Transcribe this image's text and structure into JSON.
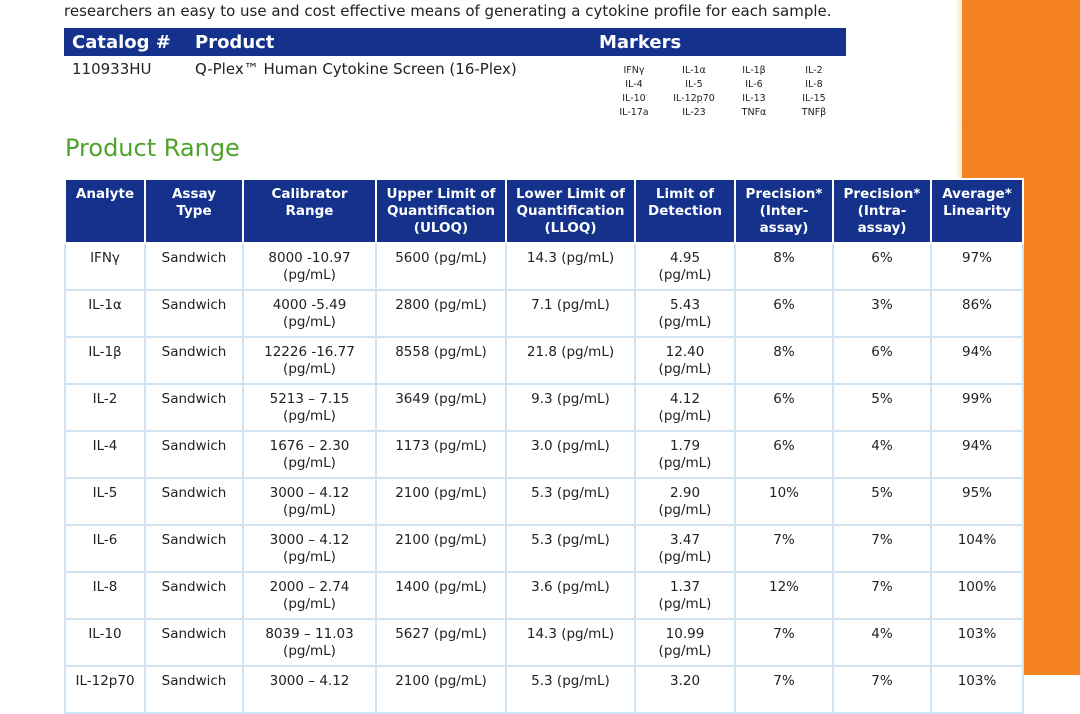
{
  "intro": "researchers an easy to use and cost effective means of generating a cytokine profile for each sample.",
  "catalog": {
    "headers": {
      "catalog": "Catalog #",
      "product": "Product",
      "markers": "Markers"
    },
    "number": "110933HU",
    "product": "Q-Plex™ Human Cytokine Screen (16-Plex)",
    "markers": [
      "IFNγ",
      "IL-1α",
      "IL-1β",
      "IL-2",
      "IL-4",
      "IL-5",
      "IL-6",
      "IL-8",
      "IL-10",
      "IL-12p70",
      "IL-13",
      "IL-15",
      "IL-17a",
      "IL-23",
      "TNFα",
      "TNFβ"
    ]
  },
  "section_title": "Product Range",
  "range_table": {
    "headers": [
      [
        "Analyte"
      ],
      [
        "Assay",
        "Type"
      ],
      [
        "Calibrator",
        "Range"
      ],
      [
        "Upper Limit of",
        "Quantification",
        "(ULOQ)"
      ],
      [
        "Lower Limit of",
        "Quantification",
        "(LLOQ)"
      ],
      [
        "Limit of",
        "Detection"
      ],
      [
        "Precision*",
        "(Inter-",
        "assay)"
      ],
      [
        "Precision*",
        "(Intra-",
        "assay)"
      ],
      [
        "Average*",
        "Linearity"
      ]
    ],
    "rows": [
      [
        [
          "IFNγ"
        ],
        [
          "Sandwich"
        ],
        [
          "8000 -10.97",
          "(pg/mL)"
        ],
        [
          "5600 (pg/mL)"
        ],
        [
          "14.3 (pg/mL)"
        ],
        [
          "4.95",
          "(pg/mL)"
        ],
        [
          "8%"
        ],
        [
          "6%"
        ],
        [
          "97%"
        ]
      ],
      [
        [
          "IL-1α"
        ],
        [
          "Sandwich"
        ],
        [
          "4000 -5.49",
          "(pg/mL)"
        ],
        [
          "2800 (pg/mL)"
        ],
        [
          "7.1 (pg/mL)"
        ],
        [
          "5.43",
          "(pg/mL)"
        ],
        [
          "6%"
        ],
        [
          "3%"
        ],
        [
          "86%"
        ]
      ],
      [
        [
          "IL-1β"
        ],
        [
          "Sandwich"
        ],
        [
          "12226 -16.77",
          "(pg/mL)"
        ],
        [
          "8558 (pg/mL)"
        ],
        [
          "21.8 (pg/mL)"
        ],
        [
          "12.40",
          "(pg/mL)"
        ],
        [
          "8%"
        ],
        [
          "6%"
        ],
        [
          "94%"
        ]
      ],
      [
        [
          "IL-2"
        ],
        [
          "Sandwich"
        ],
        [
          "5213 – 7.15",
          "(pg/mL)"
        ],
        [
          "3649 (pg/mL)"
        ],
        [
          "9.3 (pg/mL)"
        ],
        [
          "4.12",
          "(pg/mL)"
        ],
        [
          "6%"
        ],
        [
          "5%"
        ],
        [
          "99%"
        ]
      ],
      [
        [
          "IL-4"
        ],
        [
          "Sandwich"
        ],
        [
          "1676 – 2.30",
          "(pg/mL)"
        ],
        [
          "1173 (pg/mL)"
        ],
        [
          "3.0 (pg/mL)"
        ],
        [
          "1.79",
          "(pg/mL)"
        ],
        [
          "6%"
        ],
        [
          "4%"
        ],
        [
          "94%"
        ]
      ],
      [
        [
          "IL-5"
        ],
        [
          "Sandwich"
        ],
        [
          "3000 – 4.12",
          "(pg/mL)"
        ],
        [
          "2100 (pg/mL)"
        ],
        [
          "5.3 (pg/mL)"
        ],
        [
          "2.90",
          "(pg/mL)"
        ],
        [
          "10%"
        ],
        [
          "5%"
        ],
        [
          "95%"
        ]
      ],
      [
        [
          "IL-6"
        ],
        [
          "Sandwich"
        ],
        [
          "3000 – 4.12",
          "(pg/mL)"
        ],
        [
          "2100 (pg/mL)"
        ],
        [
          "5.3 (pg/mL)"
        ],
        [
          "3.47",
          "(pg/mL)"
        ],
        [
          "7%"
        ],
        [
          "7%"
        ],
        [
          "104%"
        ]
      ],
      [
        [
          "IL-8"
        ],
        [
          "Sandwich"
        ],
        [
          "2000 – 2.74",
          "(pg/mL)"
        ],
        [
          "1400 (pg/mL)"
        ],
        [
          "3.6 (pg/mL)"
        ],
        [
          "1.37",
          "(pg/mL)"
        ],
        [
          "12%"
        ],
        [
          "7%"
        ],
        [
          "100%"
        ]
      ],
      [
        [
          "IL-10"
        ],
        [
          "Sandwich"
        ],
        [
          "8039 – 11.03",
          "(pg/mL)"
        ],
        [
          "5627 (pg/mL)"
        ],
        [
          "14.3 (pg/mL)"
        ],
        [
          "10.99",
          "(pg/mL)"
        ],
        [
          "7%"
        ],
        [
          "4%"
        ],
        [
          "103%"
        ]
      ],
      [
        [
          "IL-12p70"
        ],
        [
          "Sandwich"
        ],
        [
          "3000 – 4.12"
        ],
        [
          "2100 (pg/mL)"
        ],
        [
          "5.3 (pg/mL)"
        ],
        [
          "3.20"
        ],
        [
          "7%"
        ],
        [
          "7%"
        ],
        [
          "103%"
        ]
      ]
    ]
  },
  "colors": {
    "header_blue": "#14328c",
    "accent_green": "#4fa32b",
    "accent_orange": "#f58220",
    "grid_border": "#cfe3f2"
  }
}
